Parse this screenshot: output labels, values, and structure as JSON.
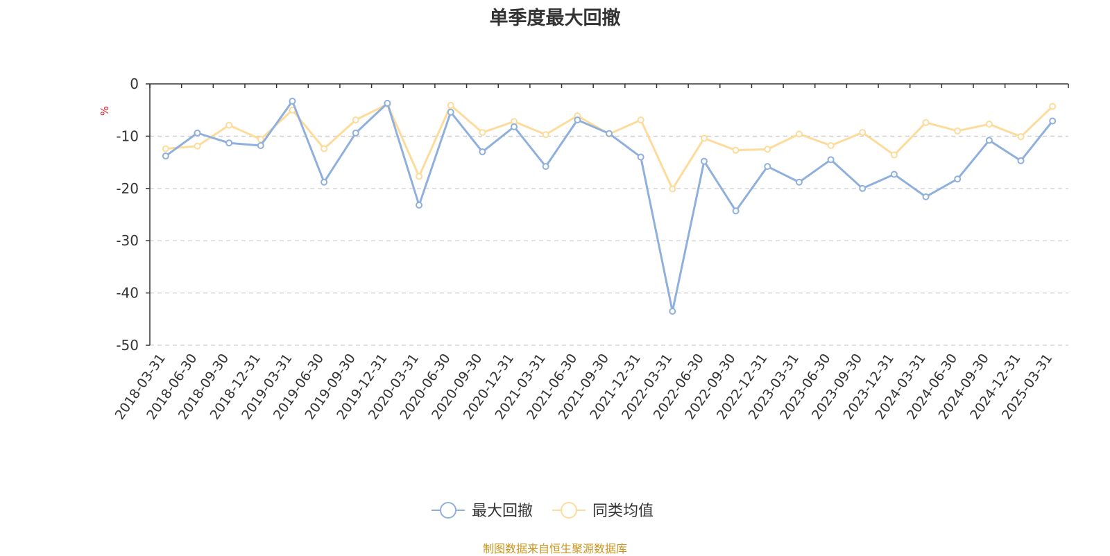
{
  "chart_data": {
    "type": "line",
    "title": "单季度最大回撤",
    "ylabel": "%",
    "ylim": [
      -50,
      0
    ],
    "yticks": [
      0,
      -10,
      -20,
      -30,
      -40,
      -50
    ],
    "grid": true,
    "legend_position": "bottom",
    "categories": [
      "2018-03-31",
      "2018-06-30",
      "2018-09-30",
      "2018-12-31",
      "2019-03-31",
      "2019-06-30",
      "2019-09-30",
      "2019-12-31",
      "2020-03-31",
      "2020-06-30",
      "2020-09-30",
      "2020-12-31",
      "2021-03-31",
      "2021-06-30",
      "2021-09-30",
      "2021-12-31",
      "2022-03-31",
      "2022-06-30",
      "2022-09-30",
      "2022-12-31",
      "2023-03-31",
      "2023-06-30",
      "2023-09-30",
      "2023-12-31",
      "2024-03-31",
      "2024-06-30",
      "2024-09-30",
      "2024-12-31",
      "2025-03-31"
    ],
    "series": [
      {
        "name": "最大回撤",
        "color": "#8fb0dc",
        "values": [
          -13.8,
          -9.4,
          -11.3,
          -11.8,
          -3.3,
          -18.8,
          -9.4,
          -3.7,
          -23.2,
          -5.4,
          -13.0,
          -8.2,
          -15.8,
          -6.9,
          -9.5,
          -14.0,
          -43.5,
          -14.8,
          -24.3,
          -15.8,
          -18.8,
          -14.5,
          -20.0,
          -17.3,
          -21.6,
          -18.2,
          -10.8,
          -14.7,
          -7.1
        ]
      },
      {
        "name": "同类均值",
        "color": "#fddb9b",
        "values": [
          -12.4,
          -11.9,
          -7.9,
          -10.6,
          -5.0,
          -12.4,
          -6.9,
          -3.9,
          -17.7,
          -4.1,
          -9.3,
          -7.2,
          -9.7,
          -6.1,
          -9.6,
          -6.9,
          -20.1,
          -10.4,
          -12.7,
          -12.5,
          -9.6,
          -11.8,
          -9.3,
          -13.6,
          -7.4,
          -9.0,
          -7.7,
          -10.1,
          -4.3
        ]
      }
    ]
  },
  "source_note": "制图数据来自恒生聚源数据库"
}
